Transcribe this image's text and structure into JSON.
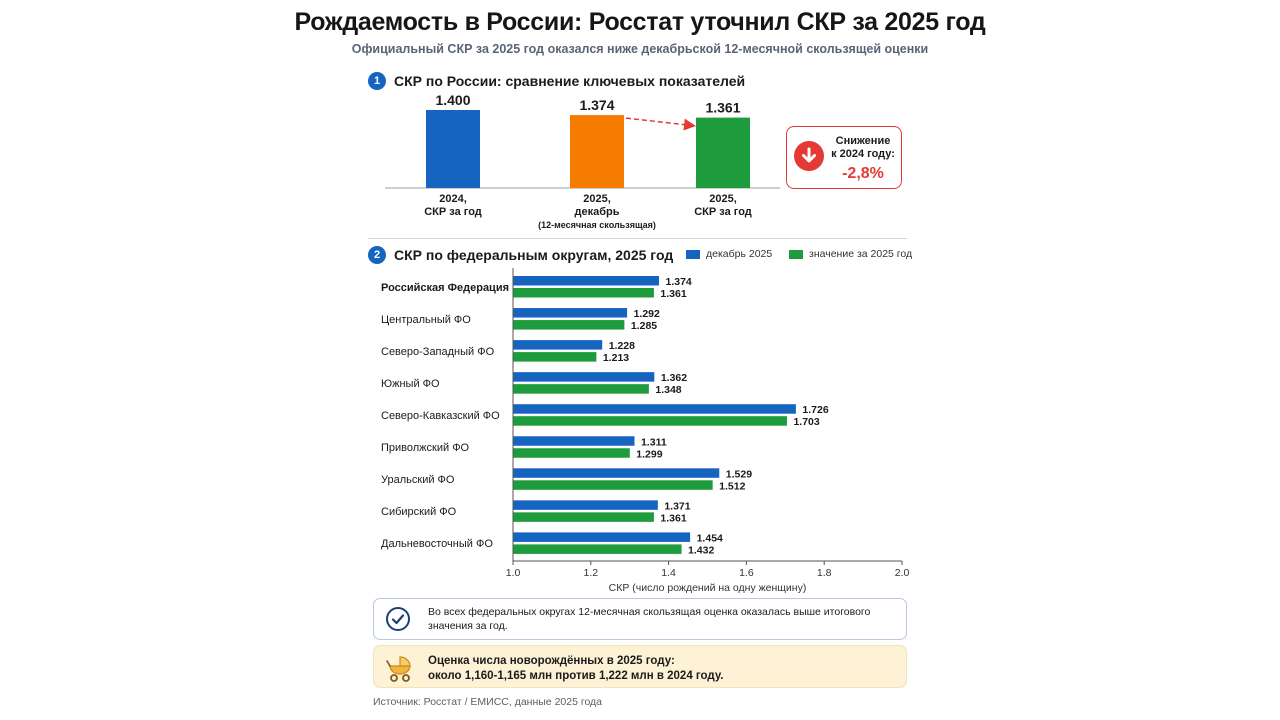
{
  "title": "Рождаемость в России: Росстат уточнил СКР за 2025 год",
  "subtitle": "Официальный СКР за 2025 год оказался ниже декабрьской 12-месячной скользящей оценки",
  "section1": {
    "number": "1",
    "title": "СКР по России: сравнение ключевых показателей"
  },
  "section2": {
    "number": "2",
    "title": "СКР по федеральным округам, 2025 год"
  },
  "drop_box": {
    "label_line1": "Снижение",
    "label_line2": "к 2024 году:",
    "value": "-2,8%",
    "color": "#e53935"
  },
  "note": {
    "text": "Во всех федеральных округах 12-месячная скользящая оценка оказалась выше итогового значения за год."
  },
  "births": {
    "line1": "Оценка числа новорождённых в 2025 году:",
    "line2": "около 1,160-1,165 млн против 1,222 млн в 2024 году."
  },
  "source": "Источник: Росстат / ЕМИСС, данные 2025 года",
  "chart_data": [
    {
      "type": "bar",
      "title": "СКР по России: сравнение ключевых показателей",
      "categories": [
        {
          "line1": "2024,",
          "line2": "СКР за год",
          "line3": ""
        },
        {
          "line1": "2025,",
          "line2": "декабрь",
          "line3": "(12-месячная скользящая)"
        },
        {
          "line1": "2025,",
          "line2": "СКР за год",
          "line3": ""
        }
      ],
      "values": [
        1.4,
        1.374,
        1.361
      ],
      "value_labels": [
        "1.400",
        "1.374",
        "1.361"
      ],
      "colors": [
        "#1565c0",
        "#f57c00",
        "#1e9b3c"
      ],
      "ylim": [
        1.0,
        1.4
      ]
    },
    {
      "type": "bar",
      "orientation": "horizontal",
      "title": "СКР по федеральным округам, 2025 год",
      "xlabel": "СКР (число рождений на одну женщину)",
      "xlim": [
        1.0,
        2.0
      ],
      "xticks": [
        "1.0",
        "1.2",
        "1.4",
        "1.6",
        "1.8",
        "2.0"
      ],
      "legend_position": "top-right",
      "categories": [
        "Российская Федерация",
        "Центральный ФО",
        "Северо-Западный ФО",
        "Южный ФО",
        "Северо-Кавказский ФО",
        "Приволжский ФО",
        "Уральский ФО",
        "Сибирский ФО",
        "Дальневосточный ФО"
      ],
      "bold_category": "Российская Федерация",
      "series": [
        {
          "name": "декабрь 2025",
          "color": "#1565c0",
          "values": [
            1.374,
            1.292,
            1.228,
            1.362,
            1.726,
            1.311,
            1.529,
            1.371,
            1.454
          ],
          "labels": [
            "1.374",
            "1.292",
            "1.228",
            "1.362",
            "1.726",
            "1.311",
            "1.529",
            "1.371",
            "1.454"
          ]
        },
        {
          "name": "значение за 2025 год",
          "color": "#1e9b3c",
          "values": [
            1.361,
            1.285,
            1.213,
            1.348,
            1.703,
            1.299,
            1.512,
            1.361,
            1.432
          ],
          "labels": [
            "1.361",
            "1.285",
            "1.213",
            "1.348",
            "1.703",
            "1.299",
            "1.512",
            "1.361",
            "1.432"
          ]
        }
      ]
    }
  ]
}
